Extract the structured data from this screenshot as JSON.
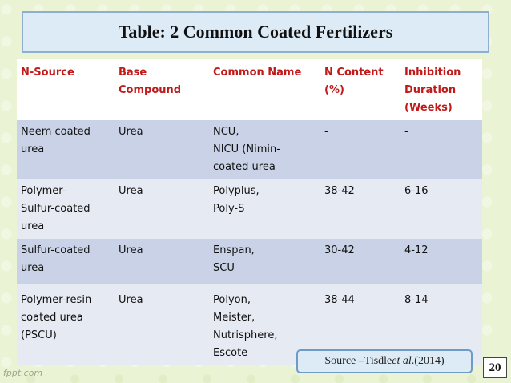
{
  "title": "Table: 2 Common Coated Fertilizers",
  "table": {
    "headers": [
      "N-Source",
      "Base\nCompound",
      "Common Name",
      "N Content\n(%)",
      "Inhibition\nDuration\n(Weeks)"
    ],
    "rows": [
      [
        "Neem coated\nurea",
        "Urea",
        "NCU,\nNICU (Nimin-\ncoated urea",
        "-",
        "-"
      ],
      [
        "Polymer-\nSulfur-coated\nurea",
        "Urea",
        "Polyplus,\nPoly-S",
        "38-42",
        "6-16"
      ],
      [
        "Sulfur-coated\nurea",
        "Urea",
        "Enspan,\nSCU",
        "30-42",
        "4-12"
      ],
      [
        "Polymer-resin\ncoated urea\n(PSCU)",
        "Urea",
        "Polyon,\nMeister,\nNutrisphere,\nEscote",
        "38-44",
        "8-14"
      ]
    ]
  },
  "source": {
    "prefix": "Source –Tisdle ",
    "italic": "et al",
    "suffix": ".(2014)"
  },
  "page_number": "20",
  "watermark": "fppt.com",
  "colors": {
    "header_text": "#c01a1a",
    "row_dark": "#c9d2e6",
    "row_light": "#e6eaf3",
    "title_bg": "#dcebf5"
  }
}
